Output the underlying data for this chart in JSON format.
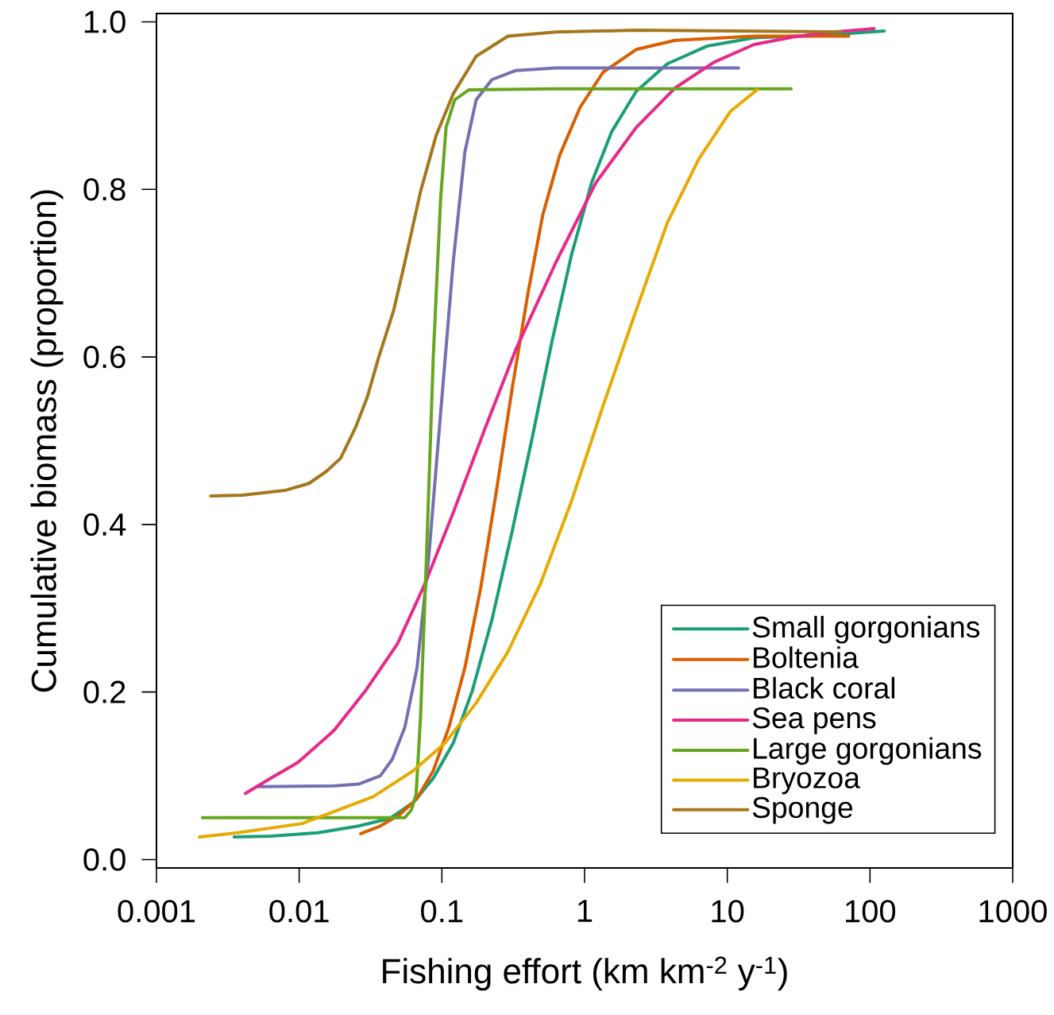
{
  "chart_data": {
    "type": "line",
    "xlabel": "Fishing effort (km km$^{-2}$ y$^{-1}$)",
    "ylabel": "Cumulative biomass (proportion)",
    "log": "x",
    "xlim": [
      0.001,
      1000
    ],
    "ylim": [
      -0.01,
      1.01
    ],
    "xticks": [
      {
        "value": 0.001,
        "label": "0.001"
      },
      {
        "value": 0.01,
        "label": "0.01"
      },
      {
        "value": 0.1,
        "label": "0.1"
      },
      1,
      10,
      100,
      1000
    ],
    "yticks": [
      {
        "value": 0,
        "label": "0.0"
      },
      0.2,
      0.4,
      0.6,
      0.8,
      {
        "value": 1,
        "label": "1.0"
      }
    ],
    "legend": "bottom right",
    "grid": false,
    "series": [
      {
        "name": "Small gorgonians",
        "color": "#1b9e77",
        "x": [
          0.0035,
          0.0063,
          0.0135,
          0.026,
          0.043,
          0.063,
          0.087,
          0.12,
          0.163,
          0.224,
          0.31,
          0.43,
          0.59,
          0.81,
          1.12,
          1.55,
          2.3,
          3.8,
          7.2,
          15.4,
          56,
          126
        ],
        "values": [
          0.027,
          0.028,
          0.032,
          0.04,
          0.049,
          0.068,
          0.097,
          0.139,
          0.201,
          0.286,
          0.391,
          0.504,
          0.618,
          0.722,
          0.808,
          0.869,
          0.917,
          0.95,
          0.971,
          0.981,
          0.985,
          0.989
        ]
      },
      {
        "name": "Boltenia",
        "color": "#d95f02",
        "x": [
          0.027,
          0.037,
          0.051,
          0.067,
          0.087,
          0.112,
          0.145,
          0.187,
          0.24,
          0.31,
          0.4,
          0.51,
          0.67,
          0.93,
          1.35,
          2.3,
          4.3,
          15.4,
          71
        ],
        "values": [
          0.031,
          0.04,
          0.054,
          0.073,
          0.106,
          0.158,
          0.229,
          0.324,
          0.438,
          0.561,
          0.675,
          0.77,
          0.841,
          0.898,
          0.94,
          0.967,
          0.978,
          0.983,
          0.983
        ]
      },
      {
        "name": "Black coral",
        "color": "#7570b3",
        "x": [
          0.0052,
          0.0175,
          0.026,
          0.037,
          0.045,
          0.055,
          0.067,
          0.081,
          0.098,
          0.12,
          0.145,
          0.174,
          0.224,
          0.33,
          0.63,
          12
        ],
        "values": [
          0.087,
          0.088,
          0.09,
          0.1,
          0.12,
          0.158,
          0.229,
          0.362,
          0.533,
          0.713,
          0.845,
          0.907,
          0.931,
          0.942,
          0.945,
          0.945
        ]
      },
      {
        "name": "Sea pens",
        "color": "#e7298a",
        "x": [
          0.0042,
          0.0063,
          0.0098,
          0.0175,
          0.029,
          0.049,
          0.076,
          0.12,
          0.2,
          0.33,
          0.63,
          1.2,
          2.3,
          4.3,
          8.1,
          15.4,
          29,
          56,
          107
        ],
        "values": [
          0.079,
          0.097,
          0.116,
          0.154,
          0.201,
          0.258,
          0.329,
          0.414,
          0.514,
          0.609,
          0.713,
          0.808,
          0.874,
          0.921,
          0.952,
          0.973,
          0.982,
          0.988,
          0.992
        ]
      },
      {
        "name": "Large gorgonians",
        "color": "#66a61e",
        "x": [
          0.0021,
          0.055,
          0.061,
          0.066,
          0.071,
          0.078,
          0.087,
          0.098,
          0.107,
          0.123,
          0.155,
          0.63,
          28
        ],
        "values": [
          0.05,
          0.05,
          0.059,
          0.078,
          0.173,
          0.362,
          0.599,
          0.789,
          0.874,
          0.907,
          0.919,
          0.92,
          0.92
        ]
      },
      {
        "name": "Bryozoa",
        "color": "#e6ab02",
        "x": [
          0.002,
          0.0037,
          0.0105,
          0.033,
          0.063,
          0.105,
          0.174,
          0.29,
          0.49,
          0.81,
          1.35,
          2.3,
          3.8,
          6.3,
          10.5,
          16.2
        ],
        "values": [
          0.027,
          0.032,
          0.043,
          0.075,
          0.106,
          0.139,
          0.187,
          0.248,
          0.329,
          0.428,
          0.542,
          0.656,
          0.76,
          0.836,
          0.893,
          0.919
        ]
      },
      {
        "name": "Sponge",
        "color": "#a6761d",
        "x": [
          0.0024,
          0.004,
          0.0081,
          0.0117,
          0.0154,
          0.0195,
          0.025,
          0.03,
          0.036,
          0.046,
          0.055,
          0.071,
          0.091,
          0.12,
          0.174,
          0.29,
          0.63,
          2.3,
          63
        ],
        "values": [
          0.434,
          0.435,
          0.441,
          0.449,
          0.463,
          0.479,
          0.517,
          0.552,
          0.599,
          0.656,
          0.713,
          0.798,
          0.864,
          0.914,
          0.959,
          0.983,
          0.988,
          0.99,
          0.988
        ]
      }
    ]
  }
}
